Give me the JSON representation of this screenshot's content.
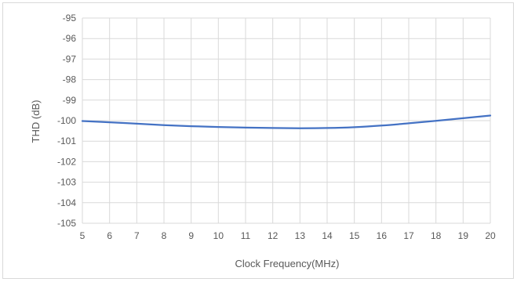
{
  "chart_data": {
    "type": "line",
    "title": "",
    "xlabel": "Clock Frequency(MHz)",
    "ylabel": "THD (dB)",
    "xlim": [
      5,
      20
    ],
    "ylim": [
      -105,
      -95
    ],
    "xticks": [
      5,
      6,
      7,
      8,
      9,
      10,
      11,
      12,
      13,
      14,
      15,
      16,
      17,
      18,
      19,
      20
    ],
    "yticks": [
      -95,
      -96,
      -97,
      -98,
      -99,
      -100,
      -101,
      -102,
      -103,
      -104,
      -105
    ],
    "grid": true,
    "legend": "none",
    "series": [
      {
        "color": "#4472c4",
        "x": [
          5,
          6,
          7,
          8,
          9,
          10,
          11,
          12,
          13,
          14,
          15,
          16,
          17,
          18,
          19,
          20
        ],
        "y": [
          -100.02,
          -100.08,
          -100.15,
          -100.22,
          -100.27,
          -100.31,
          -100.34,
          -100.36,
          -100.37,
          -100.36,
          -100.32,
          -100.24,
          -100.13,
          -100.01,
          -99.88,
          -99.75
        ]
      }
    ]
  }
}
